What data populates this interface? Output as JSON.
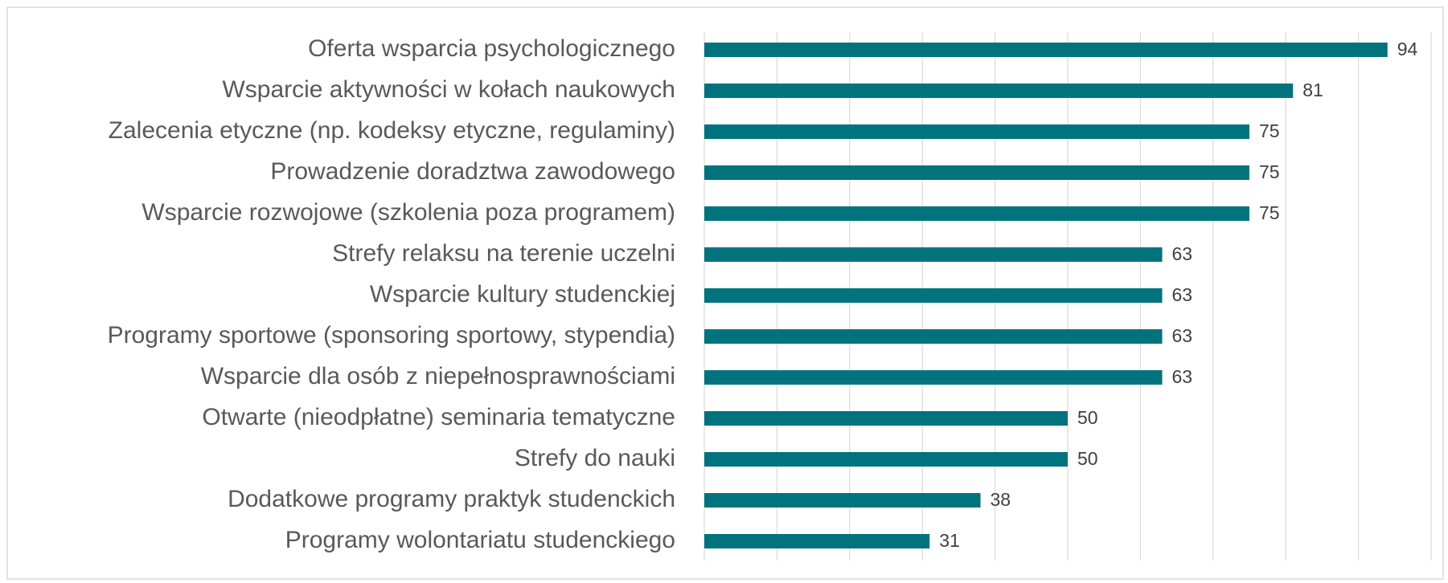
{
  "chart_data": {
    "type": "barh",
    "categories": [
      "Oferta wsparcia psychologicznego",
      "Wsparcie aktywności w kołach naukowych",
      "Zalecenia etyczne (np. kodeksy etyczne, regulaminy)",
      "Prowadzenie doradztwa zawodowego",
      "Wsparcie rozwojowe (szkolenia poza programem)",
      "Strefy relaksu na terenie uczelni",
      "Wsparcie kultury studenckiej",
      "Programy sportowe (sponsoring sportowy, stypendia)",
      "Wsparcie dla osób z niepełnosprawnościami",
      "Otwarte (nieodpłatne) seminaria tematyczne",
      "Strefy do nauki",
      "Dodatkowe programy praktyk studenckich",
      "Programy wolontariatu studenckiego"
    ],
    "values": [
      94,
      81,
      75,
      75,
      75,
      63,
      63,
      63,
      63,
      50,
      50,
      38,
      31
    ],
    "color": "#00737d",
    "xlim": [
      0,
      100
    ],
    "xticks": [
      0,
      10,
      20,
      30,
      40,
      50,
      60,
      70,
      80,
      90,
      100
    ],
    "grid": true
  }
}
